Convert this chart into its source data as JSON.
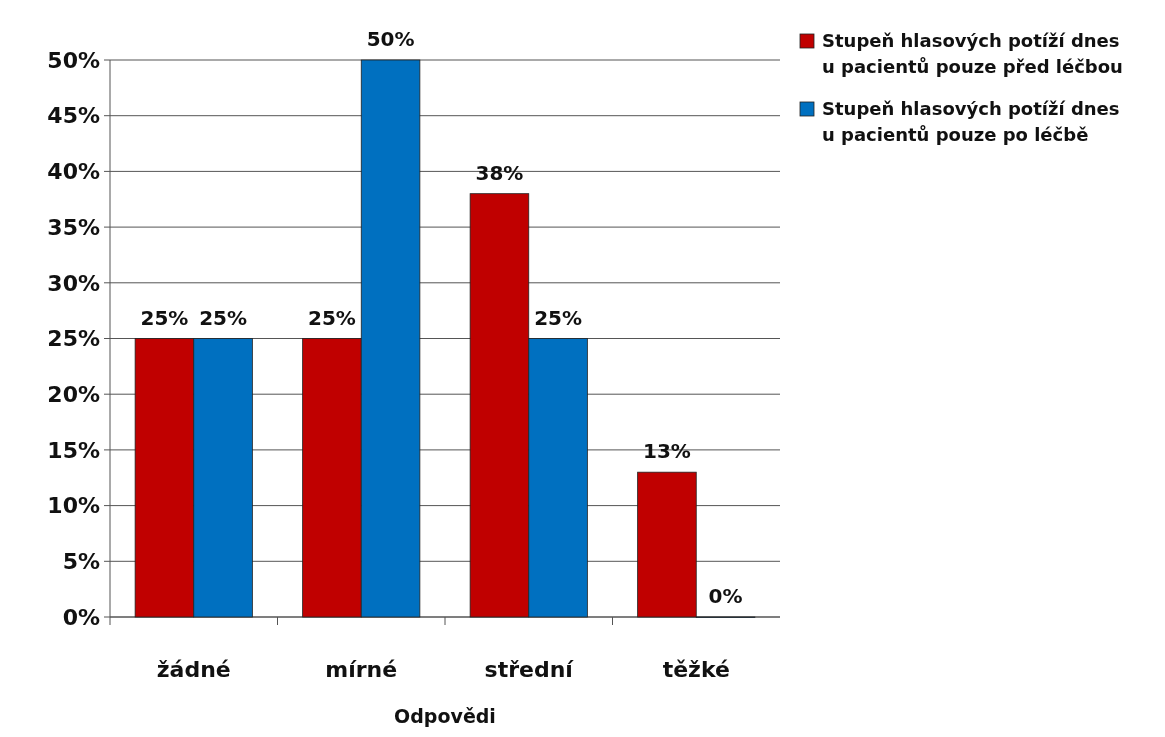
{
  "chart_data": {
    "type": "bar",
    "xlabel": "Odpovědi",
    "categories": [
      "žádné",
      "mírné",
      "střední",
      "těžké"
    ],
    "series": [
      {
        "name": "Stupeň hlasových potíží dnes u pacientů pouze před léčbou",
        "color": "#c00000",
        "values": [
          25,
          25,
          38,
          13
        ],
        "value_labels": [
          "25%",
          "25%",
          "38%",
          "13%"
        ]
      },
      {
        "name": "Stupeň hlasových potíží dnes u pacientů pouze po léčbě",
        "color": "#0070c0",
        "values": [
          25,
          50,
          25,
          0
        ],
        "value_labels": [
          "25%",
          "50%",
          "25%",
          "0%"
        ]
      }
    ],
    "ylim": [
      0,
      50
    ],
    "yticks": [
      {
        "value": 0,
        "label": "0%"
      },
      {
        "value": 5,
        "label": "5%"
      },
      {
        "value": 10,
        "label": "10%"
      },
      {
        "value": 15,
        "label": "15%"
      },
      {
        "value": 20,
        "label": "20%"
      },
      {
        "value": 25,
        "label": "25%"
      },
      {
        "value": 30,
        "label": "30%"
      },
      {
        "value": 35,
        "label": "35%"
      },
      {
        "value": 40,
        "label": "40%"
      },
      {
        "value": 45,
        "label": "45%"
      },
      {
        "value": 50,
        "label": "50%"
      }
    ],
    "grid": "y",
    "legend": "right"
  }
}
